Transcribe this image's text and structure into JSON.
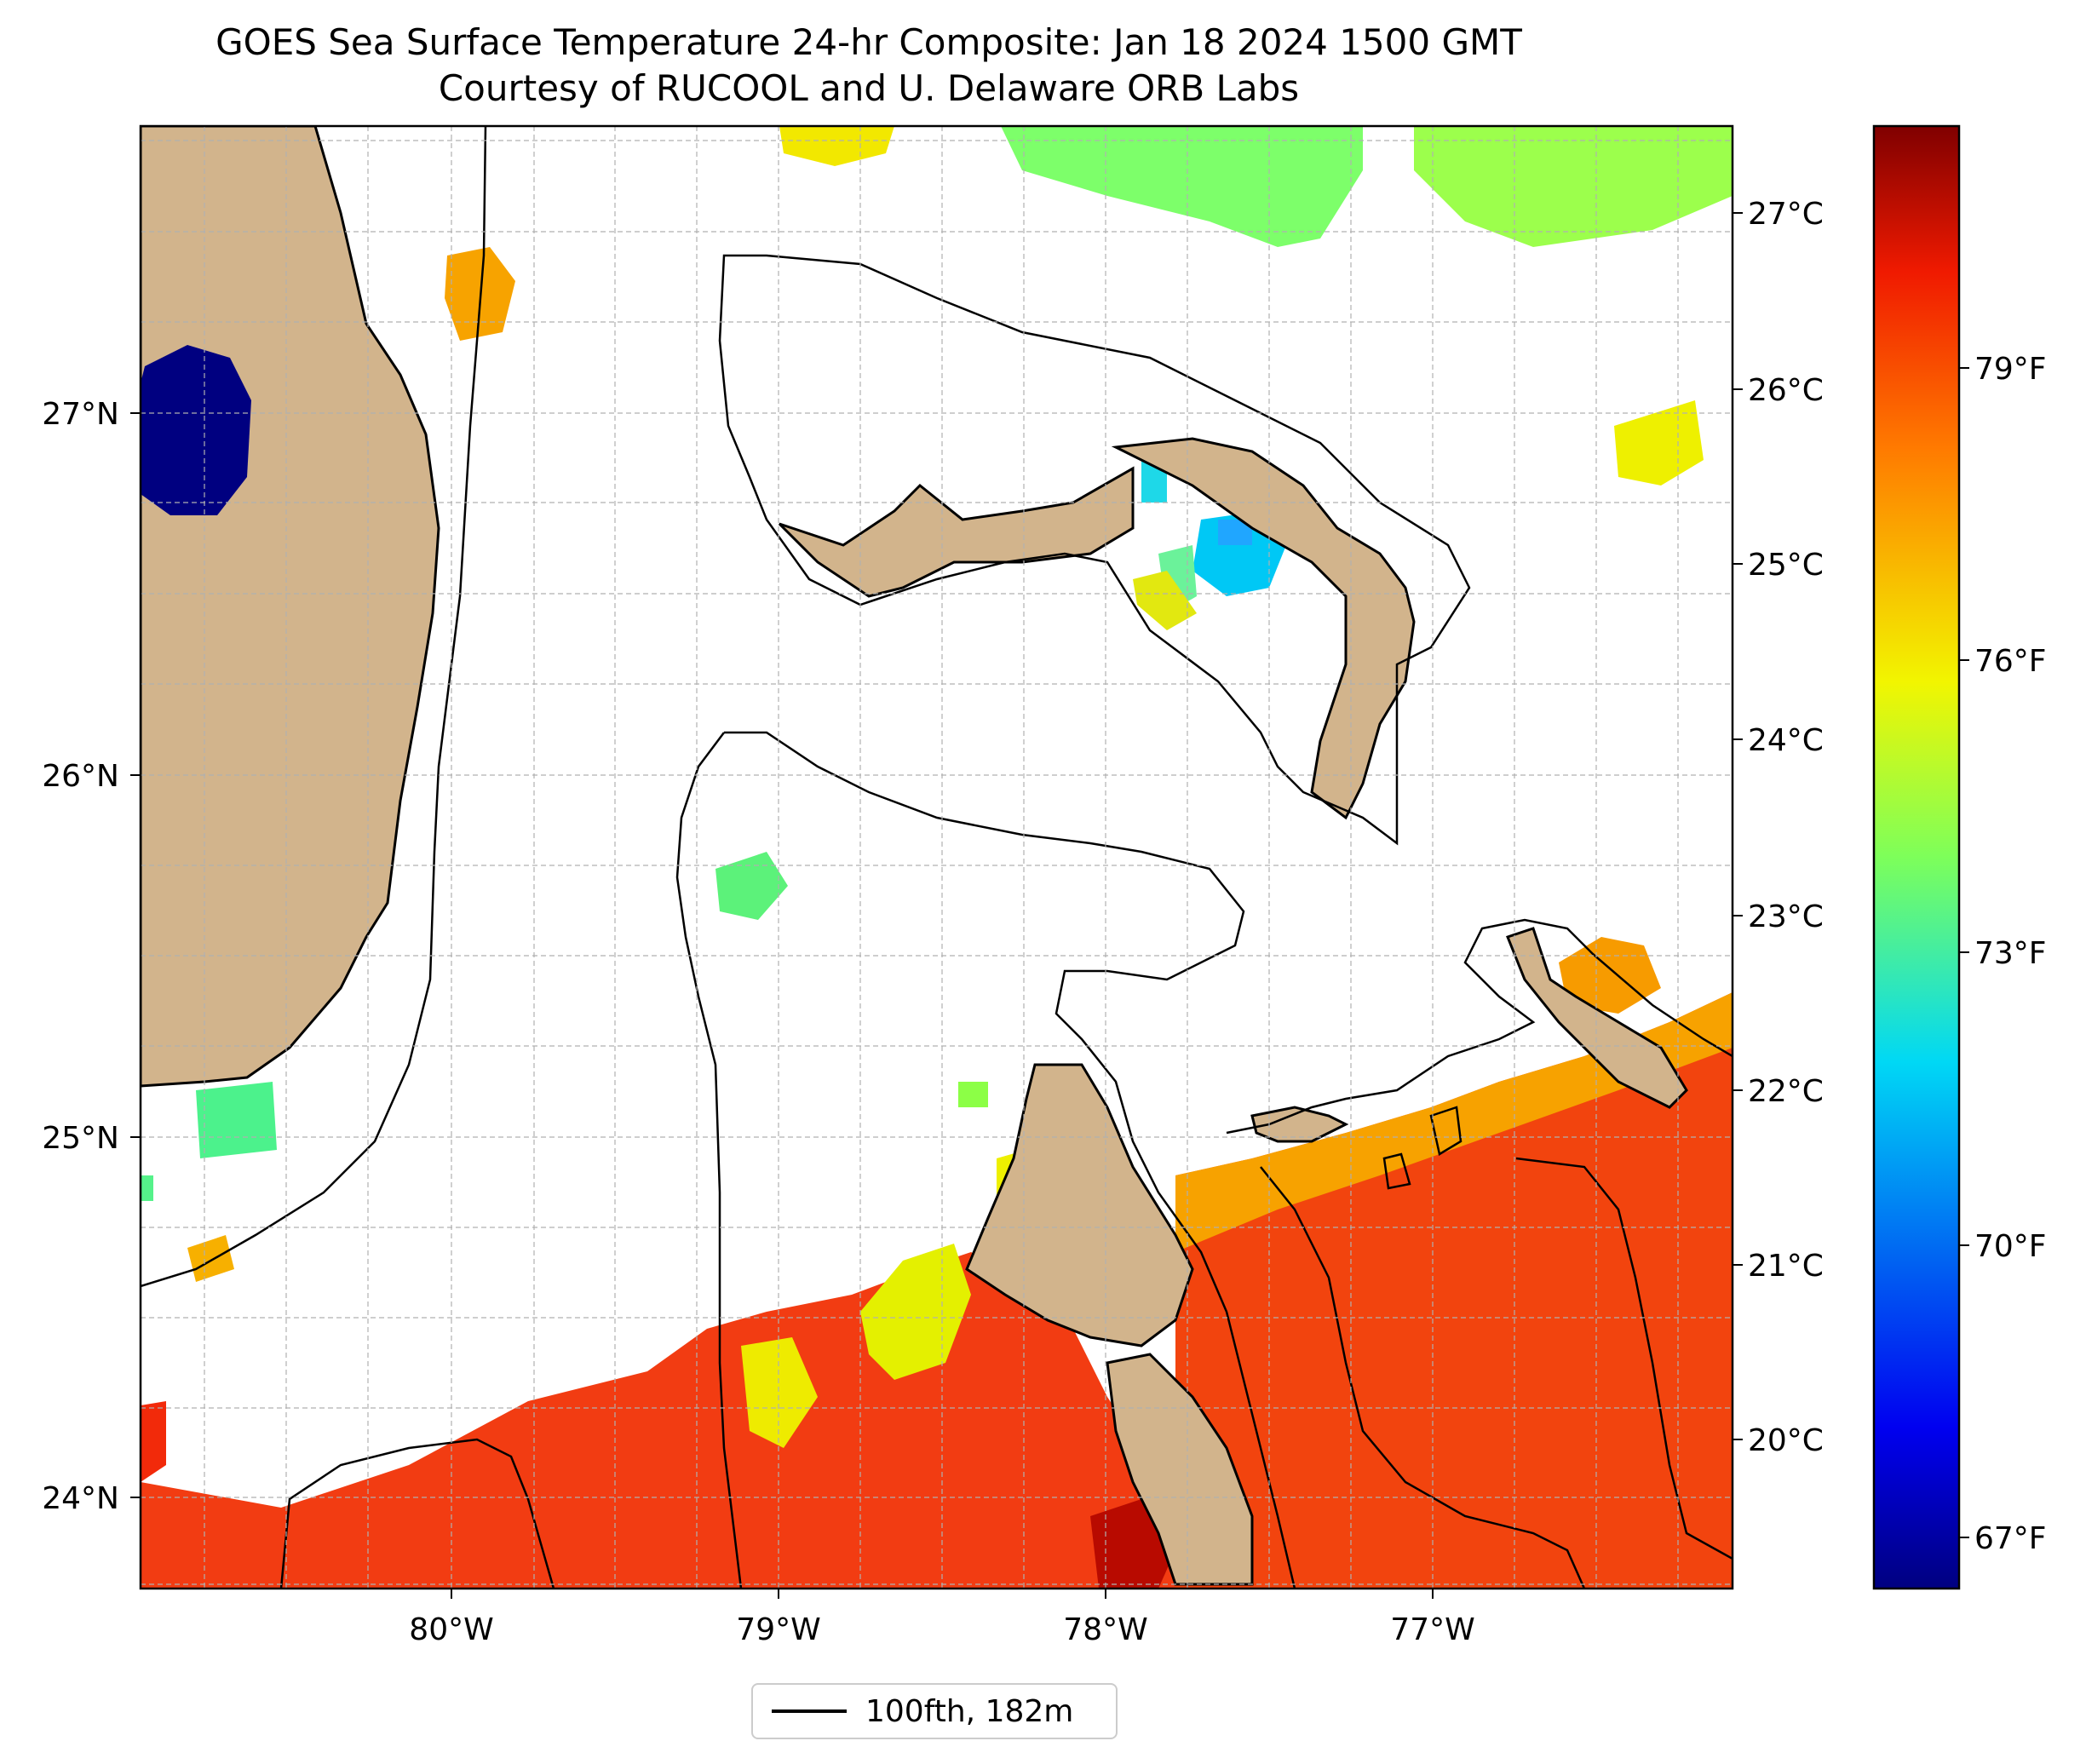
{
  "title": {
    "line1": "GOES Sea Surface Temperature 24-hr Composite: Jan 18 2024 1500 GMT",
    "line2": "Courtesy of RUCOOL and U. Delaware ORB Labs"
  },
  "axes": {
    "lat_labels": [
      "27°N",
      "26°N",
      "25°N",
      "24°N"
    ],
    "lon_labels": [
      "80°W",
      "79°W",
      "78°W",
      "77°W"
    ]
  },
  "colorbar": {
    "celsius_labels": [
      "27°C",
      "26°C",
      "25°C",
      "24°C",
      "23°C",
      "22°C",
      "21°C",
      "20°C"
    ],
    "fahrenheit_labels": [
      "79°F",
      "76°F",
      "73°F",
      "70°F",
      "67°F"
    ]
  },
  "legend": {
    "label": "100fth, 182m"
  },
  "colors": {
    "land": "#D2B48C",
    "contour": "#000000",
    "grid": "#b0b0b0",
    "warm": "#F03C10",
    "orange": "#F7A500",
    "yellow": "#E9F200",
    "green": "#7DFF5A",
    "cyan": "#00D7F5",
    "blue": "#0090FF",
    "navy": "#000080"
  }
}
